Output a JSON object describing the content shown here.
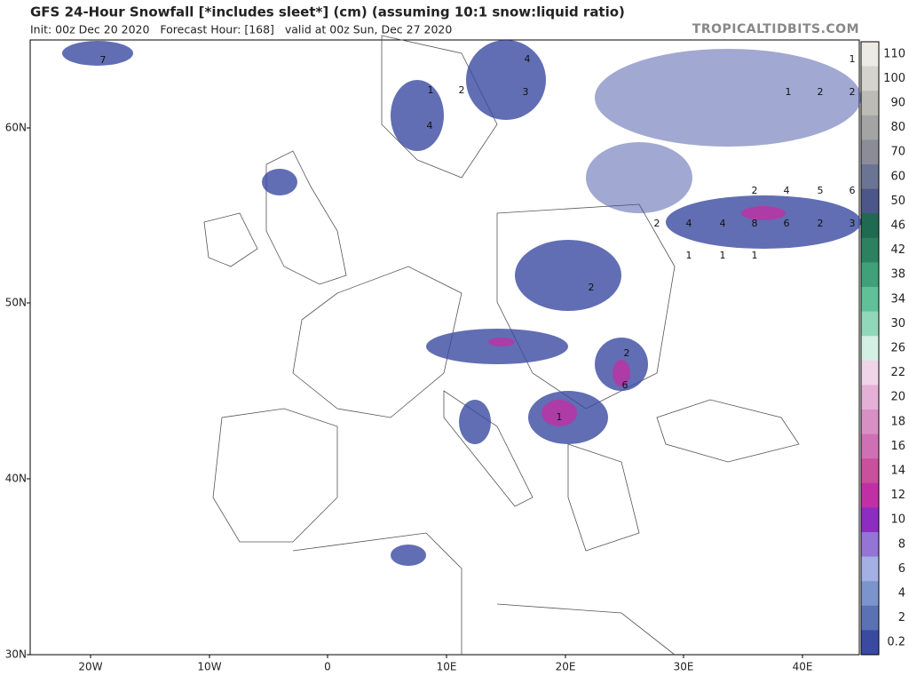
{
  "header": {
    "title": "GFS 24-Hour Snowfall [*includes sleet*] (cm) (assuming 10:1 snow:liquid ratio)",
    "subtitle": "Init: 00z Dec 20 2020   Forecast Hour: [168]   valid at 00z Sun, Dec 27 2020",
    "site": "TROPICALTIDBITS.COM"
  },
  "map": {
    "lat_labels": [
      "60N",
      "50N",
      "40N",
      "30N"
    ],
    "lon_labels": [
      "20W",
      "10W",
      "0",
      "10E",
      "20E",
      "30E",
      "40E"
    ],
    "amount_labels": [
      "7",
      "4",
      "1",
      "2",
      "3",
      "1",
      "1",
      "2",
      "2",
      "4",
      "2",
      "4",
      "5",
      "6",
      "2",
      "4",
      "4",
      "8",
      "6",
      "2",
      "3",
      "1",
      "1",
      "1",
      "2",
      "2",
      "6",
      "1"
    ]
  },
  "colorbar": {
    "labels": [
      "110",
      "100",
      "90",
      "80",
      "70",
      "60",
      "50",
      "46",
      "42",
      "38",
      "34",
      "30",
      "26",
      "22",
      "20",
      "18",
      "16",
      "14",
      "12",
      "10",
      "8",
      "6",
      "4",
      "2",
      "0.2"
    ],
    "colors": [
      "#ecece4",
      "#d4d4cc",
      "#bcbcb4",
      "#a4a4a4",
      "#8c8c98",
      "#6c7494",
      "#4c5688",
      "#1f6a50",
      "#2d8060",
      "#40a078",
      "#60c098",
      "#90d8b8",
      "#d4f0e4",
      "#f0d4ea",
      "#e4b0d6",
      "#d890c4",
      "#d070b4",
      "#c8509c",
      "#c030a4",
      "#8c2cc0",
      "#9474d4",
      "#a4b0e4",
      "#7c94cc",
      "#5a72b4",
      "#3a4aa0"
    ]
  }
}
